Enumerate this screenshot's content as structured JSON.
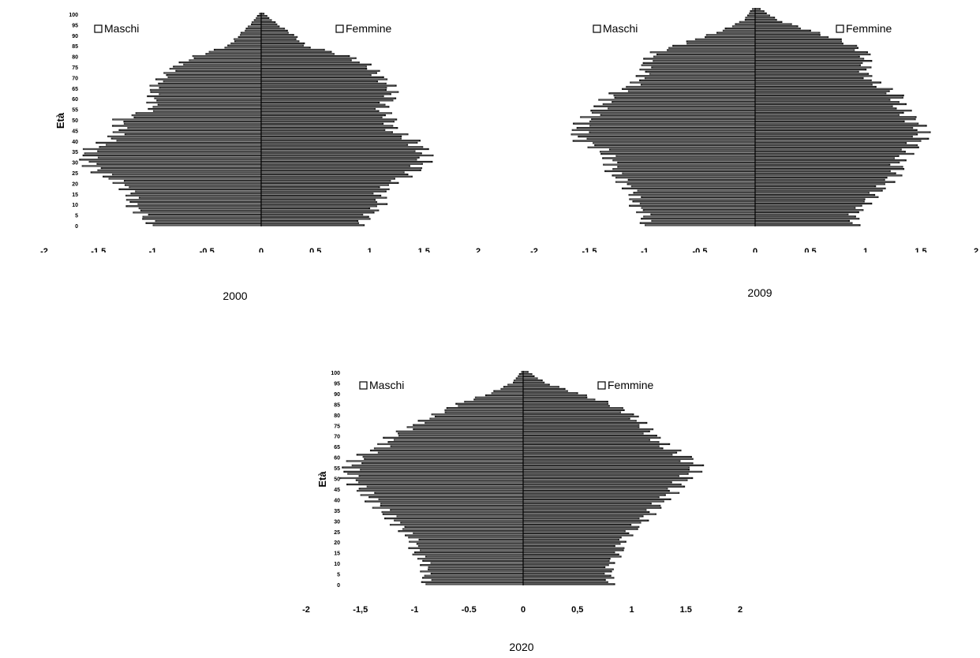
{
  "chart_data": [
    {
      "type": "bar",
      "orientation": "horizontal",
      "subtype": "population-pyramid",
      "caption": "2000",
      "ylabel": "Età",
      "y_ticks": [
        0,
        5,
        10,
        15,
        20,
        25,
        30,
        35,
        40,
        45,
        50,
        55,
        60,
        65,
        70,
        75,
        80,
        85,
        90,
        95,
        100
      ],
      "x_ticks": [
        "-2",
        "-1,5",
        "-1",
        "-0,5",
        "0",
        "0,5",
        "1",
        "1,5",
        "2"
      ],
      "xlim": [
        -2,
        2
      ],
      "ylim": [
        0,
        100
      ],
      "legend": [
        {
          "name": "Maschi",
          "position": "top-left"
        },
        {
          "name": "Femmine",
          "position": "top-right"
        }
      ],
      "age_groups": [
        0,
        5,
        10,
        15,
        20,
        25,
        30,
        35,
        40,
        45,
        50,
        55,
        60,
        65,
        70,
        75,
        80,
        85,
        90,
        95,
        100
      ],
      "series": [
        {
          "name": "Maschi",
          "values": [
            -1.0,
            -1.1,
            -1.2,
            -1.2,
            -1.3,
            -1.5,
            -1.6,
            -1.6,
            -1.4,
            -1.3,
            -1.3,
            -1.0,
            -1.0,
            -1.0,
            -0.9,
            -0.8,
            -0.6,
            -0.3,
            -0.2,
            -0.1,
            -0.02
          ]
        },
        {
          "name": "Femmine",
          "values": [
            0.9,
            1.0,
            1.1,
            1.1,
            1.2,
            1.4,
            1.5,
            1.5,
            1.4,
            1.2,
            1.2,
            1.1,
            1.2,
            1.2,
            1.1,
            1.0,
            0.8,
            0.4,
            0.3,
            0.15,
            0.03
          ]
        }
      ]
    },
    {
      "type": "bar",
      "orientation": "horizontal",
      "subtype": "population-pyramid",
      "caption": "2009",
      "ylabel": "",
      "y_ticks": [],
      "x_ticks": [
        "-2",
        "-1,5",
        "-1",
        "-0,5",
        "0",
        "0.5",
        "1",
        "1,5",
        "2"
      ],
      "xlim": [
        -2,
        2
      ],
      "ylim": [
        0,
        100
      ],
      "legend": [
        {
          "name": "Maschi",
          "position": "top-left"
        },
        {
          "name": "Femmine",
          "position": "top-right"
        }
      ],
      "age_groups": [
        0,
        5,
        10,
        15,
        20,
        25,
        30,
        35,
        40,
        45,
        50,
        55,
        60,
        65,
        70,
        75,
        80,
        85,
        90,
        95,
        100
      ],
      "series": [
        {
          "name": "Maschi",
          "values": [
            -1.0,
            -1.0,
            -1.1,
            -1.1,
            -1.2,
            -1.3,
            -1.3,
            -1.4,
            -1.6,
            -1.6,
            -1.5,
            -1.4,
            -1.3,
            -1.1,
            -1.0,
            -1.0,
            -0.9,
            -0.6,
            -0.3,
            -0.1,
            -0.03
          ]
        },
        {
          "name": "Femmine",
          "values": [
            0.9,
            0.9,
            1.0,
            1.1,
            1.2,
            1.3,
            1.3,
            1.4,
            1.5,
            1.5,
            1.4,
            1.3,
            1.3,
            1.1,
            1.0,
            1.0,
            1.0,
            0.8,
            0.5,
            0.2,
            0.05
          ]
        }
      ]
    },
    {
      "type": "bar",
      "orientation": "horizontal",
      "subtype": "population-pyramid",
      "caption": "2020",
      "ylabel": "Età",
      "y_ticks": [
        0,
        5,
        10,
        15,
        20,
        25,
        30,
        35,
        40,
        45,
        50,
        55,
        60,
        65,
        70,
        75,
        80,
        85,
        90,
        95,
        100
      ],
      "x_ticks": [
        "-2",
        "-1,5",
        "-1",
        "-0.5",
        "0",
        "0,5",
        "1",
        "1.5",
        "2"
      ],
      "xlim": [
        -2,
        2
      ],
      "ylim": [
        0,
        100
      ],
      "legend": [
        {
          "name": "Maschi",
          "position": "top-left"
        },
        {
          "name": "Femmine",
          "position": "top-right"
        }
      ],
      "age_groups": [
        0,
        5,
        10,
        15,
        20,
        25,
        30,
        35,
        40,
        45,
        50,
        55,
        60,
        65,
        70,
        75,
        80,
        85,
        90,
        95,
        100
      ],
      "series": [
        {
          "name": "Maschi",
          "values": [
            -0.9,
            -0.9,
            -0.9,
            -1.0,
            -1.0,
            -1.1,
            -1.2,
            -1.3,
            -1.4,
            -1.5,
            -1.6,
            -1.6,
            -1.5,
            -1.3,
            -1.2,
            -1.0,
            -0.8,
            -0.6,
            -0.3,
            -0.1,
            -0.02
          ]
        },
        {
          "name": "Femmine",
          "values": [
            0.8,
            0.8,
            0.8,
            0.9,
            0.9,
            1.0,
            1.1,
            1.2,
            1.3,
            1.4,
            1.5,
            1.6,
            1.5,
            1.3,
            1.2,
            1.1,
            1.0,
            0.8,
            0.5,
            0.2,
            0.05
          ]
        }
      ]
    }
  ]
}
